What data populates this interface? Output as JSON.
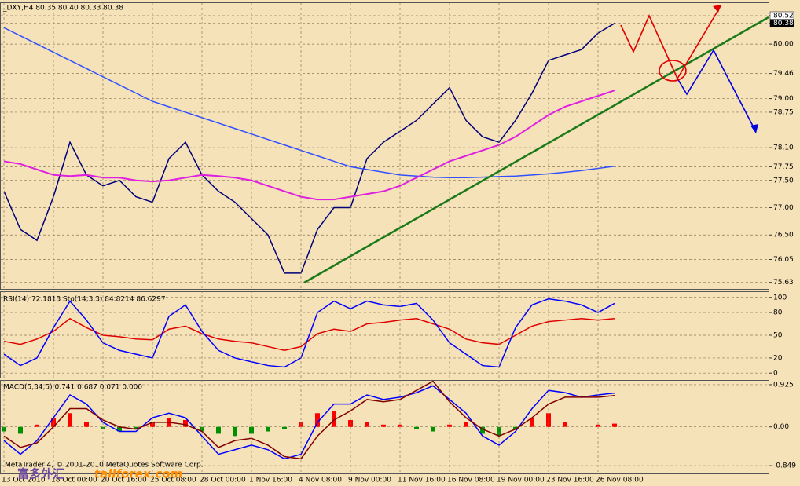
{
  "chart_data": [
    {
      "type": "line",
      "title": "_DXY,H4  80.35 80.40 80.33 80.38",
      "categories": [
        "13 Oct 2010",
        null,
        null,
        "18 Oct 00:00",
        null,
        null,
        "20 Oct 16:00",
        null,
        null,
        "25 Oct 08:00",
        null,
        null,
        "28 Oct 00:00",
        null,
        null,
        "1 Nov 16:00",
        null,
        null,
        "4 Nov 08:00",
        null,
        null,
        "9 Nov 00:00",
        null,
        null,
        "11 Nov 16:00",
        null,
        null,
        "16 Nov 08:00",
        null,
        null,
        "19 Nov 00:00",
        null,
        null,
        "23 Nov 16:00",
        null,
        null,
        "26 Nov 08:00",
        null
      ],
      "series": [
        {
          "color": "#00007a",
          "values": [
            77.3,
            76.6,
            76.4,
            77.2,
            78.2,
            77.6,
            77.4,
            77.5,
            77.2,
            77.1,
            77.9,
            78.2,
            77.6,
            77.3,
            77.1,
            76.8,
            76.5,
            75.8,
            75.8,
            76.6,
            77.0,
            77.0,
            77.9,
            78.2,
            78.4,
            78.6,
            78.9,
            79.2,
            78.6,
            78.3,
            78.2,
            78.6,
            79.1,
            79.7,
            79.8,
            79.9,
            80.2,
            80.38
          ]
        },
        {
          "color": "#3050ff",
          "values": [
            80.3,
            80.15,
            80.0,
            79.85,
            79.7,
            79.55,
            79.4,
            79.25,
            79.1,
            78.95,
            78.85,
            78.75,
            78.65,
            78.55,
            78.45,
            78.35,
            78.25,
            78.15,
            78.05,
            77.95,
            77.85,
            77.75,
            77.7,
            77.65,
            77.6,
            77.58,
            77.56,
            77.55,
            77.55,
            77.56,
            77.57,
            77.58,
            77.6,
            77.62,
            77.65,
            77.68,
            77.72,
            77.76
          ]
        },
        {
          "color": "#e020e0",
          "values": [
            77.85,
            77.8,
            77.7,
            77.6,
            77.58,
            77.6,
            77.55,
            77.55,
            77.5,
            77.48,
            77.5,
            77.55,
            77.6,
            77.58,
            77.55,
            77.5,
            77.4,
            77.3,
            77.2,
            77.15,
            77.15,
            77.2,
            77.25,
            77.3,
            77.4,
            77.55,
            77.7,
            77.85,
            77.95,
            78.05,
            78.15,
            78.3,
            78.5,
            78.7,
            78.85,
            78.95,
            79.05,
            79.15
          ]
        }
      ],
      "ylim": [
        75.51,
        80.75
      ],
      "yticks": [
        80.52,
        80.38,
        {
          "value": 80,
          "label": "80.00"
        },
        79.46,
        {
          "value": 79,
          "label": "79.00"
        },
        78.75,
        {
          "value": 78.1,
          "label": "78.10"
        },
        77.75,
        {
          "value": 77.5,
          "label": "77.50"
        },
        {
          "value": 77,
          "label": "77.00"
        },
        {
          "value": 76.5,
          "label": "76.50"
        },
        76.05,
        75.63
      ],
      "grid": true
    },
    {
      "type": "line",
      "title": "RSI(14) 72.1813  Sto(14,3,3) 84.8214 86.6297",
      "series": [
        {
          "color": "#e00000",
          "values": [
            42,
            38,
            45,
            55,
            72,
            60,
            50,
            48,
            45,
            44,
            58,
            62,
            52,
            45,
            42,
            40,
            35,
            30,
            35,
            52,
            58,
            55,
            65,
            67,
            70,
            72,
            65,
            58,
            45,
            40,
            38,
            50,
            62,
            68,
            70,
            72,
            70,
            72
          ]
        },
        {
          "color": "#0000ff",
          "values": [
            25,
            10,
            20,
            60,
            95,
            70,
            40,
            30,
            25,
            20,
            75,
            90,
            55,
            30,
            20,
            15,
            10,
            8,
            20,
            80,
            95,
            85,
            95,
            90,
            88,
            92,
            70,
            40,
            25,
            10,
            8,
            60,
            90,
            98,
            95,
            90,
            80,
            92
          ]
        }
      ],
      "ylim": [
        -6,
        107
      ],
      "yticks": [
        100,
        80,
        50,
        20,
        0
      ],
      "grid": true
    },
    {
      "type": "macd",
      "title": "MACD(5,34,5) 0.741 0.687 0.071 0.000",
      "series": [
        {
          "type": "bar",
          "color_up": "#ff0000",
          "color_down": "#009000",
          "values": [
            -0.1,
            -0.15,
            0.05,
            0.2,
            0.3,
            0.1,
            -0.05,
            -0.1,
            -0.05,
            0.1,
            0.2,
            0.15,
            -0.1,
            -0.15,
            -0.2,
            -0.15,
            -0.1,
            -0.05,
            0.1,
            0.3,
            0.35,
            0.15,
            0.1,
            0.05,
            0.05,
            -0.05,
            -0.1,
            0.05,
            0.1,
            -0.15,
            -0.2,
            -0.05,
            0.2,
            0.3,
            0.1,
            0.0,
            0.05,
            0.071
          ]
        },
        {
          "type": "line",
          "color": "#0000ff",
          "values": [
            -0.3,
            -0.6,
            -0.3,
            0.2,
            0.7,
            0.5,
            0.1,
            -0.1,
            -0.1,
            0.2,
            0.3,
            0.2,
            -0.2,
            -0.6,
            -0.5,
            -0.4,
            -0.5,
            -0.7,
            -0.6,
            0.1,
            0.5,
            0.5,
            0.7,
            0.6,
            0.65,
            0.75,
            0.9,
            0.6,
            0.3,
            -0.2,
            -0.4,
            -0.1,
            0.4,
            0.8,
            0.75,
            0.65,
            0.7,
            0.741
          ]
        },
        {
          "type": "line",
          "color": "#800000",
          "values": [
            -0.2,
            -0.45,
            -0.35,
            0.0,
            0.4,
            0.4,
            0.15,
            0.0,
            -0.05,
            0.1,
            0.1,
            0.05,
            -0.1,
            -0.45,
            -0.3,
            -0.25,
            -0.4,
            -0.65,
            -0.7,
            -0.2,
            0.15,
            0.35,
            0.6,
            0.55,
            0.6,
            0.8,
            1.0,
            0.55,
            0.2,
            -0.05,
            -0.2,
            -0.05,
            0.2,
            0.5,
            0.65,
            0.65,
            0.65,
            0.687
          ]
        }
      ],
      "ylim": [
        -1.02,
        1.01
      ],
      "yticks": [
        0.925,
        {
          "value": 0,
          "label": "0.00"
        },
        -0.849
      ],
      "grid": true
    }
  ],
  "watermark": {
    "platform": "MetaTrader 4, © 2001-2010 MetaQuotes Software Corp.",
    "brand": "富多外汇",
    "site": "tallforex.com"
  }
}
